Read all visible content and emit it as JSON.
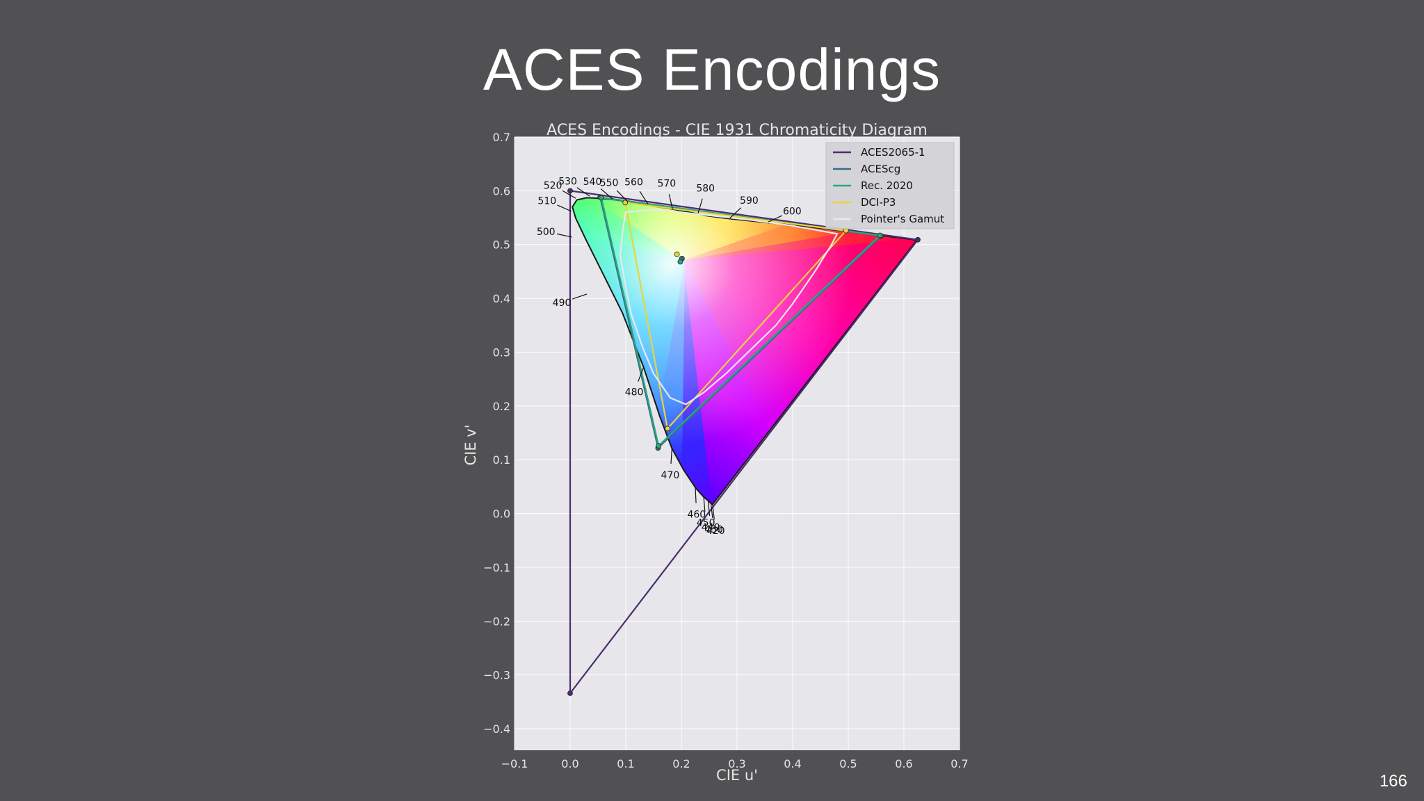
{
  "slide": {
    "title": "ACES Encodings",
    "page_number": "166"
  },
  "chart_data": {
    "type": "scatter",
    "title": "ACES Encodings - CIE 1931 Chromaticity Diagram",
    "xlabel": "CIE u'",
    "ylabel": "CIE v'",
    "xlim": [
      -0.1,
      0.7
    ],
    "ylim": [
      -0.44,
      0.7
    ],
    "xticks": [
      -0.1,
      0.0,
      0.1,
      0.2,
      0.3,
      0.4,
      0.5,
      0.6,
      0.7
    ],
    "xtick_labels": [
      "−0.1",
      "0.0",
      "0.1",
      "0.2",
      "0.3",
      "0.4",
      "0.5",
      "0.6",
      "0.7"
    ],
    "yticks": [
      -0.4,
      -0.3,
      -0.2,
      -0.1,
      0.0,
      0.1,
      0.2,
      0.3,
      0.4,
      0.5,
      0.6,
      0.7
    ],
    "ytick_labels": [
      "−0.4",
      "−0.3",
      "−0.2",
      "−0.1",
      "0.0",
      "0.1",
      "0.2",
      "0.3",
      "0.4",
      "0.5",
      "0.6",
      "0.7"
    ],
    "grid": true,
    "legend_position": "top-right",
    "spectral_locus": [
      [
        0.256,
        0.017
      ],
      [
        0.253,
        0.019
      ],
      [
        0.249,
        0.023
      ],
      [
        0.24,
        0.031
      ],
      [
        0.226,
        0.047
      ],
      [
        0.204,
        0.081
      ],
      [
        0.183,
        0.121
      ],
      [
        0.161,
        0.181
      ],
      [
        0.132,
        0.272
      ],
      [
        0.094,
        0.373
      ],
      [
        0.055,
        0.454
      ],
      [
        0.028,
        0.51
      ],
      [
        0.01,
        0.549
      ],
      [
        0.004,
        0.57
      ],
      [
        0.012,
        0.583
      ],
      [
        0.03,
        0.587
      ],
      [
        0.055,
        0.586
      ],
      [
        0.082,
        0.583
      ],
      [
        0.113,
        0.578
      ],
      [
        0.145,
        0.572
      ],
      [
        0.178,
        0.567
      ],
      [
        0.21,
        0.561
      ],
      [
        0.243,
        0.554
      ],
      [
        0.278,
        0.549
      ],
      [
        0.315,
        0.545
      ],
      [
        0.353,
        0.541
      ],
      [
        0.392,
        0.537
      ],
      [
        0.43,
        0.533
      ],
      [
        0.468,
        0.528
      ],
      [
        0.503,
        0.524
      ],
      [
        0.534,
        0.52
      ],
      [
        0.56,
        0.517
      ],
      [
        0.58,
        0.514
      ],
      [
        0.596,
        0.512
      ],
      [
        0.612,
        0.51
      ],
      [
        0.623,
        0.508
      ]
    ],
    "wavelength_labels": [
      {
        "label": "420",
        "u": 0.256,
        "v": 0.017
      },
      {
        "label": "430",
        "u": 0.253,
        "v": 0.02
      },
      {
        "label": "440",
        "u": 0.248,
        "v": 0.024
      },
      {
        "label": "450",
        "u": 0.24,
        "v": 0.032
      },
      {
        "label": "460",
        "u": 0.225,
        "v": 0.048
      },
      {
        "label": "470",
        "u": 0.183,
        "v": 0.121
      },
      {
        "label": "480",
        "u": 0.132,
        "v": 0.272
      },
      {
        "label": "490",
        "u": 0.03,
        "v": 0.408
      },
      {
        "label": "500",
        "u": 0.003,
        "v": 0.514
      },
      {
        "label": "510",
        "u": 0.002,
        "v": 0.562
      },
      {
        "label": "520",
        "u": 0.01,
        "v": 0.586
      },
      {
        "label": "530",
        "u": 0.035,
        "v": 0.59
      },
      {
        "label": "540",
        "u": 0.076,
        "v": 0.585
      },
      {
        "label": "550",
        "u": 0.103,
        "v": 0.58
      },
      {
        "label": "560",
        "u": 0.14,
        "v": 0.575
      },
      {
        "label": "570",
        "u": 0.184,
        "v": 0.566
      },
      {
        "label": "580",
        "u": 0.23,
        "v": 0.558
      },
      {
        "label": "590",
        "u": 0.287,
        "v": 0.549
      },
      {
        "label": "600",
        "u": 0.356,
        "v": 0.542
      }
    ],
    "series": [
      {
        "name": "ACES2065-1",
        "color": "#4b2d6e",
        "points": [
          [
            0.0,
            0.6
          ],
          [
            0.625,
            0.509
          ],
          [
            0.0,
            -0.334
          ]
        ],
        "white_point": [
          0.201,
          0.474
        ]
      },
      {
        "name": "ACEScg",
        "color": "#3a6b8a",
        "points": [
          [
            0.054,
            0.588
          ],
          [
            0.559,
            0.516
          ],
          [
            0.158,
            0.122
          ]
        ],
        "white_point": [
          0.201,
          0.474
        ]
      },
      {
        "name": "Rec. 2020",
        "color": "#2aa87a",
        "points": [
          [
            0.056,
            0.587
          ],
          [
            0.557,
            0.517
          ],
          [
            0.159,
            0.126
          ]
        ],
        "white_point": [
          0.198,
          0.468
        ]
      },
      {
        "name": "DCI-P3",
        "color": "#e9d43a",
        "points": [
          [
            0.099,
            0.578
          ],
          [
            0.496,
            0.526
          ],
          [
            0.175,
            0.158
          ]
        ],
        "white_point": [
          0.192,
          0.482
        ]
      },
      {
        "name": "Pointer's Gamut",
        "color": "#e8e8ee",
        "points": [
          [
            0.1,
            0.56
          ],
          [
            0.15,
            0.565
          ],
          [
            0.2,
            0.56
          ],
          [
            0.26,
            0.553
          ],
          [
            0.33,
            0.545
          ],
          [
            0.4,
            0.535
          ],
          [
            0.48,
            0.52
          ],
          [
            0.47,
            0.5
          ],
          [
            0.44,
            0.45
          ],
          [
            0.4,
            0.39
          ],
          [
            0.37,
            0.35
          ],
          [
            0.33,
            0.31
          ],
          [
            0.28,
            0.26
          ],
          [
            0.24,
            0.225
          ],
          [
            0.208,
            0.203
          ],
          [
            0.18,
            0.215
          ],
          [
            0.15,
            0.26
          ],
          [
            0.13,
            0.31
          ],
          [
            0.11,
            0.37
          ],
          [
            0.1,
            0.42
          ],
          [
            0.09,
            0.48
          ],
          [
            0.095,
            0.53
          ]
        ]
      }
    ]
  }
}
